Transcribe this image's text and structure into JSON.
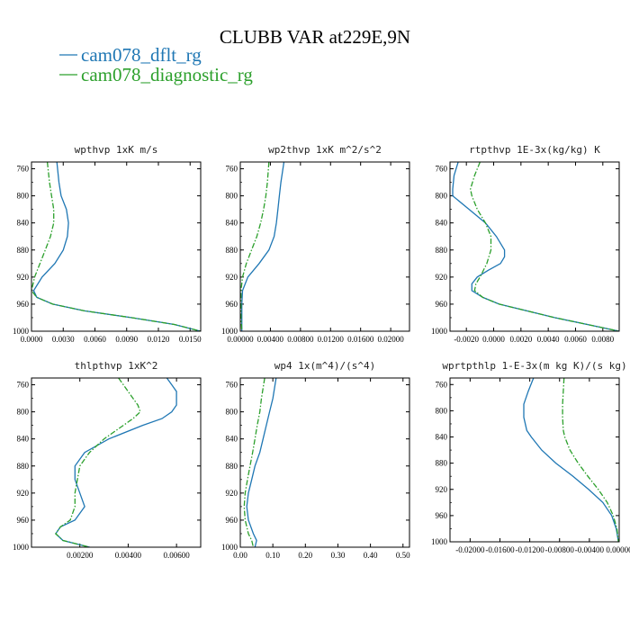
{
  "figure": {
    "title": "CLUBB VAR at229E,9N",
    "legend": [
      {
        "label": "cam078_dflt_rg",
        "color": "#1f77b4",
        "dash": "solid"
      },
      {
        "label": "cam078_diagnostic_rg",
        "color": "#2ca02c",
        "dash": "dashdot"
      }
    ]
  },
  "chart_data": [
    {
      "type": "line",
      "title": "wpthvp   1xK m/s",
      "xlim": [
        0.0,
        0.016
      ],
      "xticks": [
        "0.0000",
        "0.0030",
        "0.0060",
        "0.0090",
        "0.0120",
        "0.0150"
      ],
      "ylim": [
        1000,
        750
      ],
      "yticks": [
        "760",
        "800",
        "840",
        "880",
        "920",
        "960",
        "1000"
      ],
      "series": [
        {
          "name": "cam078_dflt_rg",
          "y": [
            750,
            780,
            800,
            820,
            840,
            860,
            880,
            900,
            920,
            940,
            950,
            960,
            970,
            980,
            990,
            1000
          ],
          "x": [
            0.0024,
            0.0026,
            0.0028,
            0.0033,
            0.0035,
            0.0034,
            0.003,
            0.0022,
            0.001,
            0.0002,
            0.0005,
            0.002,
            0.005,
            0.0095,
            0.0135,
            0.016
          ]
        },
        {
          "name": "cam078_diagnostic_rg",
          "y": [
            750,
            780,
            800,
            820,
            840,
            860,
            880,
            900,
            920,
            940,
            950,
            960,
            970,
            980,
            990,
            1000
          ],
          "x": [
            0.0015,
            0.0017,
            0.0019,
            0.0021,
            0.0021,
            0.0018,
            0.0013,
            0.0008,
            0.0003,
            0.0,
            0.0005,
            0.002,
            0.005,
            0.0095,
            0.0135,
            0.016
          ]
        }
      ]
    },
    {
      "type": "line",
      "title": "wp2thvp   1xK m^2/s^2",
      "xlim": [
        0.0,
        0.0225
      ],
      "xticks": [
        "0.00000",
        "0.00400",
        "0.00800",
        "0.01200",
        "0.01600",
        "0.02000"
      ],
      "ylim": [
        1000,
        750
      ],
      "yticks": [
        "760",
        "800",
        "840",
        "880",
        "920",
        "960",
        "1000"
      ],
      "series": [
        {
          "name": "cam078_dflt_rg",
          "y": [
            750,
            780,
            800,
            820,
            840,
            860,
            880,
            900,
            920,
            940,
            960,
            980,
            1000
          ],
          "x": [
            0.0058,
            0.0054,
            0.0052,
            0.005,
            0.0048,
            0.0045,
            0.0038,
            0.0025,
            0.001,
            0.0003,
            0.0002,
            0.0002,
            0.0002
          ]
        },
        {
          "name": "cam078_diagnostic_rg",
          "y": [
            750,
            780,
            800,
            820,
            840,
            860,
            880,
            900,
            920,
            940,
            960,
            980,
            1000
          ],
          "x": [
            0.0038,
            0.0036,
            0.0034,
            0.0031,
            0.0027,
            0.0022,
            0.0015,
            0.0008,
            0.0003,
            0.0001,
            0.0001,
            0.0001,
            0.0002
          ]
        }
      ]
    },
    {
      "type": "line",
      "title": "rtpthvp   1E-3x(kg/kg) K",
      "xlim": [
        -0.0032,
        0.0092
      ],
      "xticks": [
        "-0.0020",
        "0.0000",
        "0.0020",
        "0.0040",
        "0.0060",
        "0.0080"
      ],
      "ylim": [
        1000,
        750
      ],
      "yticks": [
        "760",
        "800",
        "840",
        "880",
        "920",
        "960",
        "1000"
      ],
      "series": [
        {
          "name": "cam078_dflt_rg",
          "y": [
            750,
            770,
            790,
            800,
            820,
            840,
            860,
            880,
            890,
            900,
            910,
            920,
            930,
            940,
            950,
            960,
            980,
            1000
          ],
          "x": [
            -0.0026,
            -0.0029,
            -0.003,
            -0.003,
            -0.0018,
            -0.0006,
            0.0002,
            0.0008,
            0.0008,
            0.0005,
            -0.0004,
            -0.0012,
            -0.0016,
            -0.0016,
            -0.0008,
            0.0004,
            0.0045,
            0.0092
          ]
        },
        {
          "name": "cam078_diagnostic_rg",
          "y": [
            750,
            770,
            790,
            800,
            820,
            840,
            860,
            880,
            900,
            920,
            930,
            940,
            950,
            960,
            980,
            1000
          ],
          "x": [
            -0.001,
            -0.0014,
            -0.0017,
            -0.0016,
            -0.0012,
            -0.0006,
            -0.0002,
            -0.0002,
            -0.0005,
            -0.001,
            -0.0013,
            -0.0014,
            -0.0008,
            0.0004,
            0.0045,
            0.0092
          ]
        }
      ]
    },
    {
      "type": "line",
      "title": "thlpthvp   1xK^2",
      "xlim": [
        0.0,
        0.007
      ],
      "xticks": [
        "0.00200",
        "0.00400",
        "0.00600"
      ],
      "ylim": [
        1000,
        750
      ],
      "yticks": [
        "760",
        "800",
        "840",
        "880",
        "920",
        "960",
        "1000"
      ],
      "series": [
        {
          "name": "cam078_dflt_rg",
          "y": [
            750,
            760,
            770,
            780,
            790,
            800,
            810,
            820,
            840,
            860,
            880,
            900,
            920,
            940,
            960,
            970,
            980,
            990,
            1000
          ],
          "x": [
            0.0056,
            0.0058,
            0.006,
            0.006,
            0.006,
            0.0058,
            0.0054,
            0.0046,
            0.0032,
            0.0022,
            0.0018,
            0.0018,
            0.002,
            0.0022,
            0.0018,
            0.0012,
            0.001,
            0.0013,
            0.0024
          ]
        },
        {
          "name": "cam078_diagnostic_rg",
          "y": [
            750,
            760,
            770,
            780,
            790,
            800,
            810,
            820,
            840,
            860,
            880,
            900,
            920,
            940,
            960,
            970,
            980,
            990,
            1000
          ],
          "x": [
            0.0036,
            0.0038,
            0.004,
            0.0042,
            0.0044,
            0.0045,
            0.0042,
            0.0038,
            0.003,
            0.0024,
            0.002,
            0.0019,
            0.0018,
            0.0018,
            0.0016,
            0.0012,
            0.001,
            0.0013,
            0.0024
          ]
        }
      ]
    },
    {
      "type": "line",
      "title": "wp4   1x(m^4)/(s^4)",
      "xlim": [
        0.0,
        0.52
      ],
      "xticks": [
        "0.00",
        "0.10",
        "0.20",
        "0.30",
        "0.40",
        "0.50"
      ],
      "ylim": [
        1000,
        750
      ],
      "yticks": [
        "760",
        "800",
        "840",
        "880",
        "920",
        "960",
        "1000"
      ],
      "series": [
        {
          "name": "cam078_dflt_rg",
          "y": [
            750,
            780,
            800,
            820,
            840,
            860,
            880,
            900,
            920,
            940,
            960,
            980,
            990,
            1000
          ],
          "x": [
            0.11,
            0.1,
            0.09,
            0.08,
            0.07,
            0.06,
            0.045,
            0.035,
            0.025,
            0.02,
            0.025,
            0.04,
            0.05,
            0.045
          ]
        },
        {
          "name": "cam078_diagnostic_rg",
          "y": [
            750,
            780,
            800,
            820,
            840,
            860,
            880,
            900,
            920,
            940,
            960,
            980,
            990,
            1000
          ],
          "x": [
            0.075,
            0.065,
            0.06,
            0.052,
            0.045,
            0.038,
            0.03,
            0.022,
            0.015,
            0.012,
            0.015,
            0.025,
            0.035,
            0.04
          ]
        }
      ]
    },
    {
      "type": "line",
      "title": "wprtpthlp   1-E-3x(m kg K)/(s kg)",
      "xlim": [
        -0.0227,
        0.0
      ],
      "xticks": [
        "-0.02000",
        "-0.01600",
        "-0.01200",
        "-0.00800",
        "-0.00400",
        "0.00000"
      ],
      "ylim": [
        1000,
        750
      ],
      "yticks": [
        "760",
        "800",
        "840",
        "880",
        "920",
        "960",
        "1000"
      ],
      "series": [
        {
          "name": "cam078_dflt_rg",
          "y": [
            750,
            770,
            790,
            810,
            830,
            840,
            860,
            880,
            900,
            920,
            940,
            960,
            980,
            1000
          ],
          "x": [
            -0.0115,
            -0.0122,
            -0.0128,
            -0.0128,
            -0.0124,
            -0.0118,
            -0.0104,
            -0.0085,
            -0.0062,
            -0.0041,
            -0.0022,
            -0.001,
            -0.0004,
            -0.0001
          ]
        },
        {
          "name": "cam078_diagnostic_rg",
          "y": [
            750,
            770,
            790,
            810,
            830,
            840,
            860,
            880,
            900,
            920,
            940,
            960,
            980,
            1000
          ],
          "x": [
            -0.0074,
            -0.0075,
            -0.0076,
            -0.0076,
            -0.0075,
            -0.0073,
            -0.0066,
            -0.0055,
            -0.0042,
            -0.0028,
            -0.0016,
            -0.0008,
            -0.0003,
            -0.0001
          ]
        }
      ]
    }
  ]
}
